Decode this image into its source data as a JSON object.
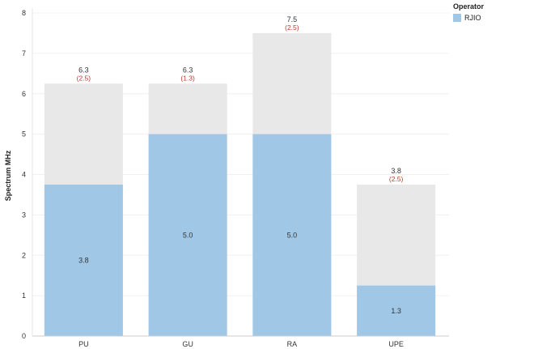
{
  "chart_data": {
    "type": "bar",
    "categories": [
      "PU",
      "GU",
      "RA",
      "UPE"
    ],
    "ylabel": "Spectrum MHz",
    "xlabel": "",
    "ylim": [
      0,
      8
    ],
    "yticks": [
      0,
      1,
      2,
      3,
      4,
      5,
      6,
      7,
      8
    ],
    "grid": true,
    "series": [
      {
        "name": "RJIO",
        "values": [
          3.75,
          5.0,
          5.0,
          1.25
        ],
        "labels": [
          "3.8",
          "5.0",
          "5.0",
          "1.3"
        ],
        "color": "#a0c8e6"
      }
    ],
    "totals": [
      6.25,
      6.25,
      7.5,
      3.75
    ],
    "total_labels": [
      "6.3",
      "6.3",
      "7.5",
      "3.8"
    ],
    "gap_labels": [
      "(2.5)",
      "(1.3)",
      "(2.5)",
      "(2.5)"
    ],
    "total_color": "#e8e8e8",
    "gap_color": "#c0392b",
    "legend": {
      "title": "Operator",
      "position": "top-right"
    }
  }
}
